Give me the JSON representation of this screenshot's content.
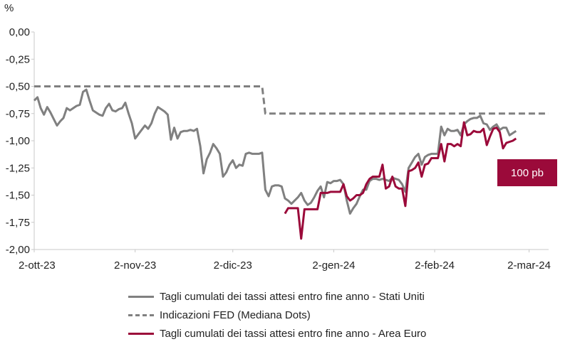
{
  "chart_data": {
    "type": "line",
    "unit_label": "%",
    "y_ticks": [
      "0,00",
      "-0,25",
      "-0,50",
      "-0,75",
      "-1,00",
      "-1,25",
      "-1,50",
      "-1,75",
      "-2,00"
    ],
    "y_tick_values": [
      0,
      -0.25,
      -0.5,
      -0.75,
      -1.0,
      -1.25,
      -1.5,
      -1.75,
      -2.0
    ],
    "ylim": [
      -2.0,
      0.0
    ],
    "xlim": [
      0,
      158
    ],
    "x_ticks": [
      {
        "label": "2-ott-23",
        "x": 0
      },
      {
        "label": "2-nov-23",
        "x": 31
      },
      {
        "label": "2-dic-23",
        "x": 61
      },
      {
        "label": "2-gen-24",
        "x": 92
      },
      {
        "label": "2-feb-24",
        "x": 123
      },
      {
        "label": "2-mar-24",
        "x": 152
      }
    ],
    "series": [
      {
        "name": "Tagli cumulati dei tassi attesi entro fine anno - Stati Uniti",
        "color": "#808080",
        "style": "solid",
        "points": [
          [
            0,
            -0.63
          ],
          [
            1,
            -0.6
          ],
          [
            2,
            -0.7
          ],
          [
            3,
            -0.76
          ],
          [
            4,
            -0.69
          ],
          [
            5,
            -0.74
          ],
          [
            6,
            -0.8
          ],
          [
            7,
            -0.86
          ],
          [
            8,
            -0.82
          ],
          [
            9,
            -0.79
          ],
          [
            10,
            -0.7
          ],
          [
            11,
            -0.72
          ],
          [
            12,
            -0.7
          ],
          [
            13,
            -0.68
          ],
          [
            14,
            -0.67
          ],
          [
            15,
            -0.55
          ],
          [
            16,
            -0.53
          ],
          [
            17,
            -0.63
          ],
          [
            18,
            -0.72
          ],
          [
            19,
            -0.74
          ],
          [
            20,
            -0.76
          ],
          [
            21,
            -0.77
          ],
          [
            22,
            -0.7
          ],
          [
            23,
            -0.66
          ],
          [
            24,
            -0.72
          ],
          [
            25,
            -0.73
          ],
          [
            26,
            -0.71
          ],
          [
            27,
            -0.7
          ],
          [
            28,
            -0.65
          ],
          [
            29,
            -0.75
          ],
          [
            30,
            -0.84
          ],
          [
            31,
            -0.98
          ],
          [
            32,
            -0.94
          ],
          [
            33,
            -0.9
          ],
          [
            34,
            -0.86
          ],
          [
            35,
            -0.89
          ],
          [
            36,
            -0.84
          ],
          [
            37,
            -0.75
          ],
          [
            38,
            -0.69
          ],
          [
            39,
            -0.71
          ],
          [
            40,
            -0.73
          ],
          [
            41,
            -0.76
          ],
          [
            42,
            -0.99
          ],
          [
            43,
            -0.88
          ],
          [
            44,
            -0.98
          ],
          [
            45,
            -0.92
          ],
          [
            46,
            -0.91
          ],
          [
            47,
            -0.91
          ],
          [
            48,
            -0.9
          ],
          [
            49,
            -0.91
          ],
          [
            50,
            -0.89
          ],
          [
            51,
            -1.05
          ],
          [
            52,
            -1.3
          ],
          [
            53,
            -1.17
          ],
          [
            54,
            -1.11
          ],
          [
            55,
            -1.03
          ],
          [
            56,
            -1.07
          ],
          [
            57,
            -1.12
          ],
          [
            58,
            -1.33
          ],
          [
            59,
            -1.29
          ],
          [
            60,
            -1.22
          ],
          [
            61,
            -1.18
          ],
          [
            62,
            -1.25
          ],
          [
            63,
            -1.22
          ],
          [
            64,
            -1.23
          ],
          [
            65,
            -1.12
          ],
          [
            66,
            -1.11
          ],
          [
            67,
            -1.12
          ],
          [
            68,
            -1.12
          ],
          [
            69,
            -1.12
          ],
          [
            70,
            -1.11
          ],
          [
            71,
            -1.45
          ],
          [
            72,
            -1.51
          ],
          [
            73,
            -1.42
          ],
          [
            74,
            -1.41
          ],
          [
            75,
            -1.41
          ],
          [
            76,
            -1.42
          ],
          [
            77,
            -1.53
          ],
          [
            78,
            -1.55
          ],
          [
            79,
            -1.58
          ],
          [
            80,
            -1.55
          ],
          [
            81,
            -1.52
          ],
          [
            82,
            -1.48
          ],
          [
            83,
            -1.55
          ],
          [
            84,
            -1.59
          ],
          [
            85,
            -1.57
          ],
          [
            86,
            -1.52
          ],
          [
            87,
            -1.46
          ],
          [
            88,
            -1.42
          ],
          [
            89,
            -1.52
          ],
          [
            90,
            -1.38
          ],
          [
            91,
            -1.39
          ],
          [
            92,
            -1.37
          ],
          [
            93,
            -1.37
          ],
          [
            94,
            -1.36
          ],
          [
            95,
            -1.4
          ],
          [
            96,
            -1.55
          ],
          [
            97,
            -1.67
          ],
          [
            98,
            -1.62
          ],
          [
            99,
            -1.58
          ],
          [
            100,
            -1.51
          ],
          [
            101,
            -1.45
          ],
          [
            102,
            -1.45
          ],
          [
            103,
            -1.37
          ],
          [
            104,
            -1.35
          ],
          [
            105,
            -1.35
          ],
          [
            106,
            -1.36
          ],
          [
            107,
            -1.35
          ],
          [
            108,
            -1.36
          ],
          [
            109,
            -1.37
          ],
          [
            110,
            -1.34
          ],
          [
            111,
            -1.35
          ],
          [
            112,
            -1.36
          ],
          [
            113,
            -1.4
          ],
          [
            114,
            -1.47
          ],
          [
            115,
            -1.25
          ],
          [
            116,
            -1.2
          ],
          [
            117,
            -1.15
          ],
          [
            118,
            -1.12
          ],
          [
            119,
            -1.22
          ],
          [
            120,
            -1.15
          ],
          [
            121,
            -1.13
          ],
          [
            122,
            -1.12
          ],
          [
            123,
            -1.12
          ],
          [
            124,
            -1.12
          ],
          [
            125,
            -0.87
          ],
          [
            126,
            -0.95
          ],
          [
            127,
            -0.89
          ],
          [
            128,
            -0.91
          ],
          [
            129,
            -0.91
          ],
          [
            130,
            -0.9
          ],
          [
            131,
            -0.95
          ],
          [
            132,
            -0.85
          ],
          [
            133,
            -0.82
          ],
          [
            134,
            -0.8
          ],
          [
            135,
            -0.79
          ],
          [
            136,
            -0.79
          ],
          [
            137,
            -0.77
          ],
          [
            138,
            -0.84
          ],
          [
            139,
            -0.85
          ],
          [
            140,
            -0.9
          ],
          [
            141,
            -0.87
          ],
          [
            142,
            -0.85
          ],
          [
            143,
            -0.9
          ],
          [
            144,
            -0.88
          ],
          [
            145,
            -0.88
          ],
          [
            146,
            -0.95
          ],
          [
            147,
            -0.93
          ],
          [
            148,
            -0.91
          ]
        ]
      },
      {
        "name": "Indicazioni FED (Mediana Dots)",
        "color": "#808080",
        "style": "dashed",
        "points": [
          [
            0,
            -0.5
          ],
          [
            70,
            -0.5
          ],
          [
            71,
            -0.75
          ],
          [
            158,
            -0.75
          ]
        ]
      },
      {
        "name": "Tagli cumulati dei tassi attesi entro fine anno - Area Euro",
        "color": "#9b0a3a",
        "style": "solid",
        "points": [
          [
            77,
            -1.67
          ],
          [
            78,
            -1.62
          ],
          [
            79,
            -1.62
          ],
          [
            80,
            -1.62
          ],
          [
            81,
            -1.62
          ],
          [
            82,
            -1.9
          ],
          [
            83,
            -1.63
          ],
          [
            84,
            -1.63
          ],
          [
            85,
            -1.63
          ],
          [
            86,
            -1.63
          ],
          [
            87,
            -1.63
          ],
          [
            88,
            -1.48
          ],
          [
            89,
            -1.48
          ],
          [
            90,
            -1.48
          ],
          [
            91,
            -1.47
          ],
          [
            92,
            -1.47
          ],
          [
            93,
            -1.47
          ],
          [
            94,
            -1.47
          ],
          [
            95,
            -1.4
          ],
          [
            96,
            -1.51
          ],
          [
            97,
            -1.55
          ],
          [
            98,
            -1.53
          ],
          [
            99,
            -1.5
          ],
          [
            100,
            -1.5
          ],
          [
            101,
            -1.48
          ],
          [
            102,
            -1.4
          ],
          [
            103,
            -1.35
          ],
          [
            104,
            -1.33
          ],
          [
            105,
            -1.33
          ],
          [
            106,
            -1.33
          ],
          [
            107,
            -1.22
          ],
          [
            108,
            -1.44
          ],
          [
            109,
            -1.42
          ],
          [
            110,
            -1.33
          ],
          [
            111,
            -1.42
          ],
          [
            112,
            -1.44
          ],
          [
            113,
            -1.44
          ],
          [
            114,
            -1.6
          ],
          [
            115,
            -1.28
          ],
          [
            116,
            -1.27
          ],
          [
            117,
            -1.25
          ],
          [
            118,
            -1.2
          ],
          [
            119,
            -1.33
          ],
          [
            120,
            -1.22
          ],
          [
            121,
            -1.21
          ],
          [
            122,
            -1.16
          ],
          [
            123,
            -1.16
          ],
          [
            124,
            -1.16
          ],
          [
            125,
            -1.03
          ],
          [
            126,
            -1.19
          ],
          [
            127,
            -1.03
          ],
          [
            128,
            -1.03
          ],
          [
            129,
            -1.05
          ],
          [
            130,
            -1.03
          ],
          [
            131,
            -1.05
          ],
          [
            132,
            -0.83
          ],
          [
            133,
            -0.95
          ],
          [
            134,
            -0.94
          ],
          [
            135,
            -0.91
          ],
          [
            136,
            -0.92
          ],
          [
            137,
            -0.92
          ],
          [
            138,
            -0.89
          ],
          [
            139,
            -1.04
          ],
          [
            140,
            -0.96
          ],
          [
            141,
            -0.89
          ],
          [
            142,
            -0.88
          ],
          [
            143,
            -0.92
          ],
          [
            144,
            -1.07
          ],
          [
            145,
            -1.02
          ],
          [
            146,
            -1.01
          ],
          [
            147,
            -1.0
          ],
          [
            148,
            -0.98
          ]
        ]
      }
    ],
    "annotation": {
      "text": "100 pb",
      "color": "#9b0a3a"
    },
    "legend_position": "bottom",
    "grid": false,
    "axis_color": "#c8c8c8"
  },
  "legend": {
    "items": [
      {
        "label": "Tagli cumulati dei tassi attesi entro fine anno - Stati Uniti"
      },
      {
        "label": "Indicazioni FED (Mediana Dots)"
      },
      {
        "label": "Tagli cumulati dei tassi attesi entro fine anno - Area Euro"
      }
    ]
  }
}
